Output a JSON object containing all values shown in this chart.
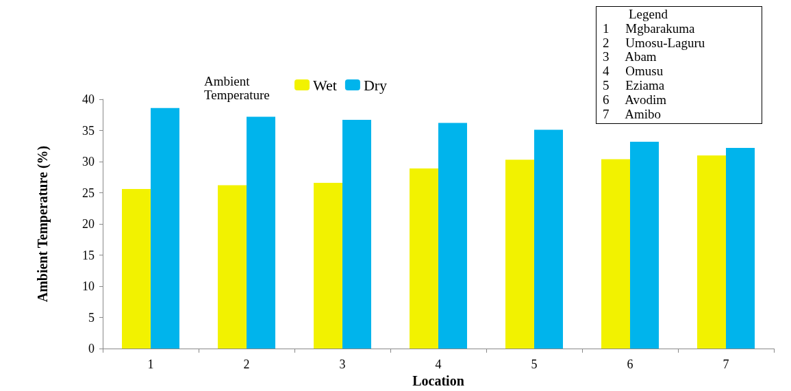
{
  "chart_data": {
    "type": "bar",
    "xlabel": "Location",
    "ylabel": "Ambient Temperature (%)",
    "legend_title": "Ambient Temperature",
    "categories": [
      "1",
      "2",
      "3",
      "4",
      "5",
      "6",
      "7"
    ],
    "series": [
      {
        "name": "Wet",
        "color": "#f2f200",
        "values": [
          25.6,
          26.2,
          26.6,
          28.9,
          30.3,
          30.4,
          31.0
        ]
      },
      {
        "name": "Dry",
        "color": "#00b4ec",
        "values": [
          38.6,
          37.2,
          36.7,
          36.2,
          35.1,
          33.2,
          32.2
        ]
      }
    ],
    "ylim": [
      0,
      40
    ],
    "yticks": [
      0,
      5,
      10,
      15,
      20,
      25,
      30,
      35,
      40
    ],
    "grid": false,
    "legend": "top",
    "annotations": [
      "Legend",
      "1     Mgbarakuma",
      "2     Umosu-Laguru",
      "3     Abam",
      "4     Omusu",
      "5     Eziama",
      "6     Avodim",
      "7     Amibo"
    ]
  }
}
